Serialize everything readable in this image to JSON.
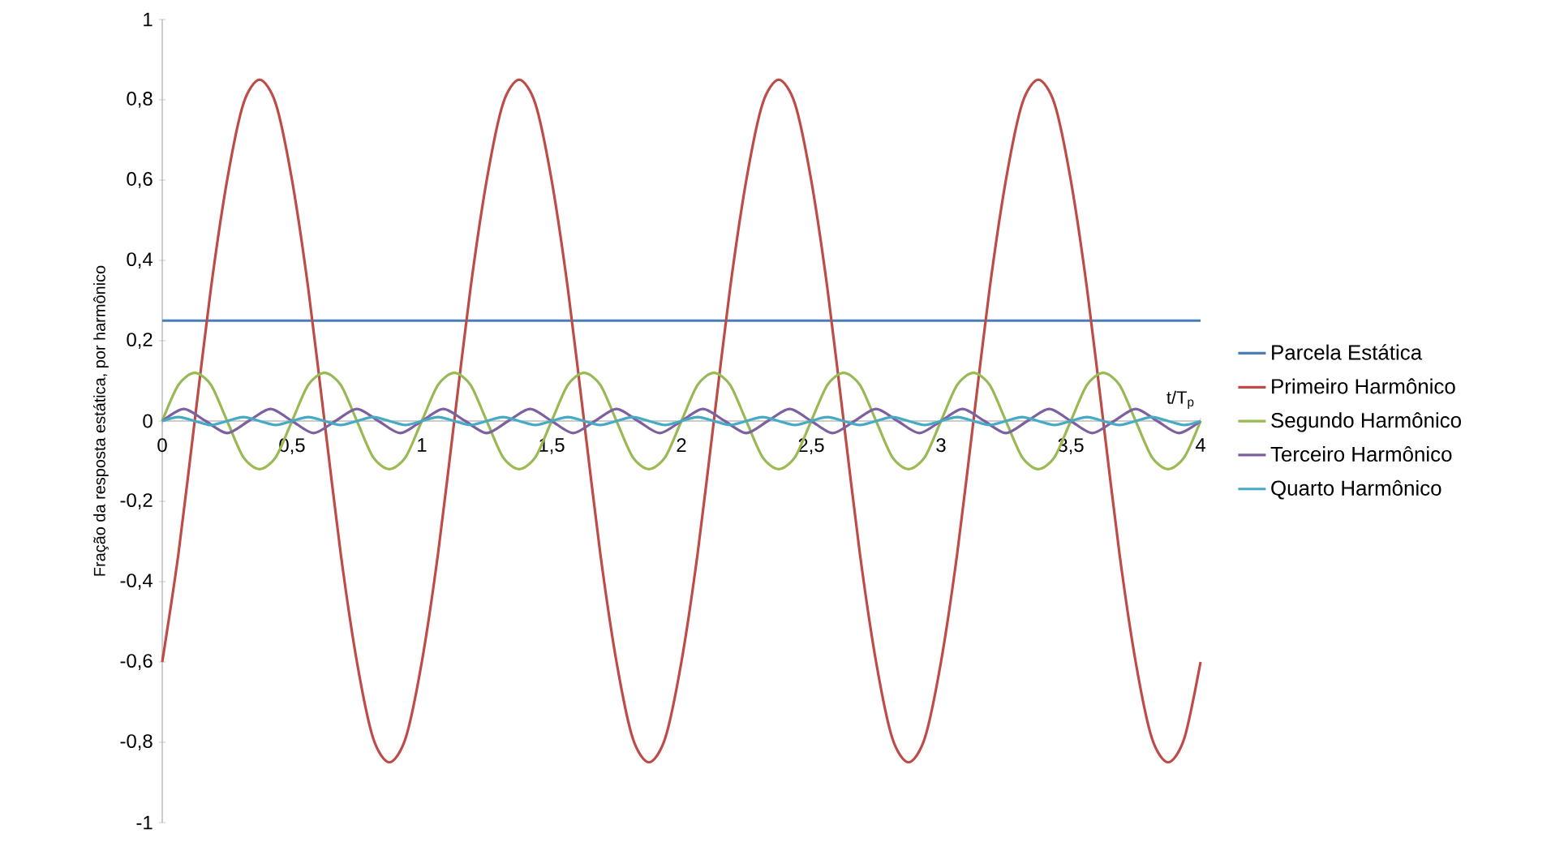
{
  "chart_data": {
    "type": "line",
    "ylabel": "Fração da resposta estática, por harmônico",
    "xlabel": "t/T$_{p}$",
    "x": [
      0,
      0.0625,
      0.125,
      0.1875,
      0.25,
      0.3125,
      0.375,
      0.4375,
      0.5,
      0.5625,
      0.625,
      0.6875,
      0.75,
      0.8125,
      0.875,
      0.9375,
      1,
      1.0625,
      1.125,
      1.1875,
      1.25,
      1.3125,
      1.375,
      1.4375,
      1.5,
      1.5625,
      1.625,
      1.6875,
      1.75,
      1.8125,
      1.875,
      1.9375,
      2,
      2.0625,
      2.125,
      2.1875,
      2.25,
      2.3125,
      2.375,
      2.4375,
      2.5,
      2.5625,
      2.625,
      2.6875,
      2.75,
      2.8125,
      2.875,
      2.9375,
      3,
      3.0625,
      3.125,
      3.1875,
      3.25,
      3.3125,
      3.375,
      3.4375,
      3.5,
      3.5625,
      3.625,
      3.6875,
      3.75,
      3.8125,
      3.875,
      3.9375,
      4
    ],
    "series": [
      {
        "name": "Parcela Estática",
        "color": "#4a7ebb",
        "x": [
          0,
          4
        ],
        "values": [
          0.25,
          0.25
        ]
      },
      {
        "name": "Primeiro Harmônico",
        "color": "#be4b48",
        "values": [
          -0.6,
          -0.33,
          0,
          0.33,
          0.6,
          0.79,
          0.85,
          0.79,
          0.6,
          0.33,
          0,
          -0.33,
          -0.6,
          -0.79,
          -0.85,
          -0.79,
          -0.6,
          -0.33,
          0,
          0.33,
          0.6,
          0.79,
          0.85,
          0.79,
          0.6,
          0.33,
          0,
          -0.33,
          -0.6,
          -0.79,
          -0.85,
          -0.79,
          -0.6,
          -0.33,
          0,
          0.33,
          0.6,
          0.79,
          0.85,
          0.79,
          0.6,
          0.33,
          0,
          -0.33,
          -0.6,
          -0.79,
          -0.85,
          -0.79,
          -0.6,
          -0.33,
          0,
          0.33,
          0.6,
          0.79,
          0.85,
          0.79,
          0.6,
          0.33,
          0,
          -0.33,
          -0.6,
          -0.79,
          -0.85,
          -0.79,
          -0.6
        ]
      },
      {
        "name": "Segundo Harmônico",
        "color": "#98b954",
        "values": [
          0,
          0.09,
          0.12,
          0.09,
          0,
          -0.09,
          -0.12,
          -0.09,
          0,
          0.09,
          0.12,
          0.09,
          0,
          -0.09,
          -0.12,
          -0.09,
          0,
          0.09,
          0.12,
          0.09,
          0,
          -0.09,
          -0.12,
          -0.09,
          0,
          0.09,
          0.12,
          0.09,
          0,
          -0.09,
          -0.12,
          -0.09,
          0,
          0.09,
          0.12,
          0.09,
          0,
          -0.09,
          -0.12,
          -0.09,
          0,
          0.09,
          0.12,
          0.09,
          0,
          -0.09,
          -0.12,
          -0.09,
          0,
          0.09,
          0.12,
          0.09,
          0,
          -0.09,
          -0.12,
          -0.09,
          0,
          0.09,
          0.12,
          0.09,
          0,
          -0.09,
          -0.12,
          -0.09,
          0
        ]
      },
      {
        "name": "Terceiro Harmônico",
        "color": "#7d60a0",
        "x": [
          0,
          0.083,
          0.167,
          0.25,
          0.333,
          0.417,
          0.5,
          0.583,
          0.667,
          0.75,
          0.833,
          0.917,
          1,
          1.083,
          1.167,
          1.25,
          1.333,
          1.417,
          1.5,
          1.583,
          1.667,
          1.75,
          1.833,
          1.917,
          2,
          2.083,
          2.167,
          2.25,
          2.333,
          2.417,
          2.5,
          2.583,
          2.667,
          2.75,
          2.833,
          2.917,
          3,
          3.083,
          3.167,
          3.25,
          3.333,
          3.417,
          3.5,
          3.583,
          3.667,
          3.75,
          3.833,
          3.917,
          4
        ],
        "values": [
          0,
          0.03,
          0,
          -0.03,
          0,
          0.03,
          0,
          -0.03,
          0,
          0.03,
          0,
          -0.03,
          0,
          0.03,
          0,
          -0.03,
          0,
          0.03,
          0,
          -0.03,
          0,
          0.03,
          0,
          -0.03,
          0,
          0.03,
          0,
          -0.03,
          0,
          0.03,
          0,
          -0.03,
          0,
          0.03,
          0,
          -0.03,
          0,
          0.03,
          0,
          -0.03,
          0,
          0.03,
          0,
          -0.03,
          0,
          0.03,
          0,
          -0.03,
          0
        ]
      },
      {
        "name": "Quarto Harmônico",
        "color": "#46aac5",
        "values": [
          0,
          0.01,
          0,
          -0.01,
          0,
          0.01,
          0,
          -0.01,
          0,
          0.01,
          0,
          -0.01,
          0,
          0.01,
          0,
          -0.01,
          0,
          0.01,
          0,
          -0.01,
          0,
          0.01,
          0,
          -0.01,
          0,
          0.01,
          0,
          -0.01,
          0,
          0.01,
          0,
          -0.01,
          0,
          0.01,
          0,
          -0.01,
          0,
          0.01,
          0,
          -0.01,
          0,
          0.01,
          0,
          -0.01,
          0,
          0.01,
          0,
          -0.01,
          0,
          0.01,
          0,
          -0.01,
          0,
          0.01,
          0,
          -0.01,
          0,
          0.01,
          0,
          -0.01,
          0,
          0.01,
          0,
          -0.01,
          0
        ]
      }
    ],
    "xlim": [
      0,
      4
    ],
    "ylim": [
      -1,
      1
    ],
    "xticks": [
      0,
      {
        "value": 0.5,
        "label": "0,5"
      },
      1,
      {
        "value": 1.5,
        "label": "1,5"
      },
      2,
      {
        "value": 2.5,
        "label": "2,5"
      },
      3,
      {
        "value": 3.5,
        "label": "3,5"
      },
      4
    ],
    "yticks": [
      -1,
      {
        "value": -0.8,
        "label": "-0,8"
      },
      {
        "value": -0.6,
        "label": "-0,6"
      },
      {
        "value": -0.4,
        "label": "-0,4"
      },
      {
        "value": -0.2,
        "label": "-0,2"
      },
      0,
      {
        "value": 0.2,
        "label": "0,2"
      },
      {
        "value": 0.4,
        "label": "0,4"
      },
      {
        "value": 0.6,
        "label": "0,6"
      },
      {
        "value": 0.8,
        "label": "0,8"
      },
      1
    ],
    "legend": "right",
    "grid": false,
    "marker": "none",
    "line_style": "solid"
  }
}
